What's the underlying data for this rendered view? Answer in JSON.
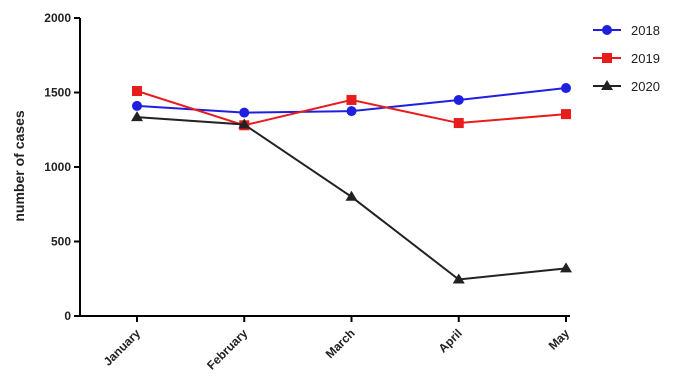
{
  "chart_data": {
    "type": "line",
    "categories": [
      "January",
      "February",
      "March",
      "April",
      "May"
    ],
    "series": [
      {
        "name": "2018",
        "values": [
          1410,
          1365,
          1375,
          1450,
          1530
        ],
        "color": "#1f1fe0",
        "marker": "circle"
      },
      {
        "name": "2019",
        "values": [
          1510,
          1280,
          1450,
          1295,
          1355
        ],
        "color": "#e81c1c",
        "marker": "square"
      },
      {
        "name": "2020",
        "values": [
          1335,
          1285,
          800,
          245,
          320
        ],
        "color": "#222222",
        "marker": "triangle"
      }
    ],
    "title": "",
    "xlabel": "",
    "ylabel": "number of cases",
    "ylim": [
      0,
      2000
    ],
    "yticks": [
      "0",
      "500",
      "1000",
      "1500",
      "2000"
    ],
    "yticks_values": [
      0,
      500,
      1000,
      1500,
      2000
    ],
    "grid": false,
    "legend_position": "top-right"
  }
}
